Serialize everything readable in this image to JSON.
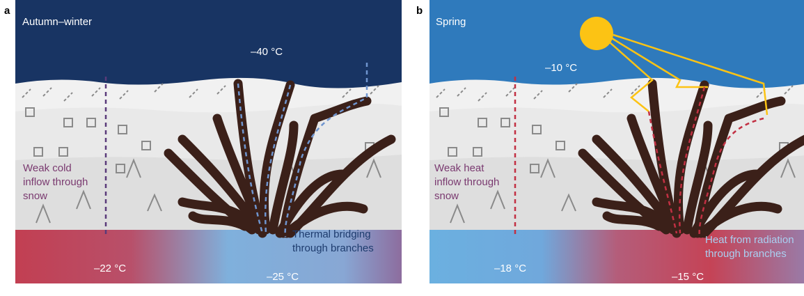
{
  "panels": [
    {
      "letter": "a",
      "season": "Autumn–winter",
      "air_temp": "–40 °C",
      "snow_note": [
        "Weak cold",
        "inflow through",
        "snow"
      ],
      "branch_note": [
        "Thermal bridging",
        "through branches"
      ],
      "soil_left_temp": "–22 °C",
      "soil_right_temp": "–25 °C"
    },
    {
      "letter": "b",
      "season": "Spring",
      "air_temp": "–10 °C",
      "snow_note": [
        "Weak heat",
        "inflow through",
        "snow"
      ],
      "branch_note": [
        "Heat from radiation",
        "through branches"
      ],
      "soil_left_temp": "–18 °C",
      "soil_right_temp": "–15 °C"
    }
  ]
}
